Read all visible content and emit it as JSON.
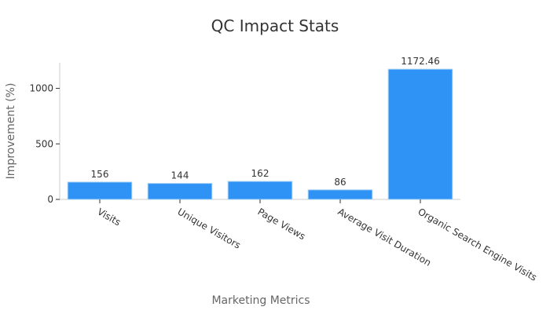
{
  "chart_data": {
    "type": "bar",
    "title": "QC Impact Stats",
    "xlabel": "Marketing Metrics",
    "ylabel": "Improvement (%)",
    "categories": [
      "Visits",
      "Unique Visitors",
      "Page Views",
      "Average Visit Duration",
      "Organic Search Engine Visits"
    ],
    "values": [
      156,
      144,
      162,
      86,
      1172.46
    ],
    "data_labels": [
      "156",
      "144",
      "162",
      "86",
      "1172.46"
    ],
    "yticks": [
      0,
      500,
      1000
    ],
    "ytick_labels": [
      "0",
      "500",
      "1000"
    ],
    "ylim": [
      0,
      1230
    ],
    "bar_color": "#2e93f5",
    "grid": false,
    "legend": "none"
  }
}
